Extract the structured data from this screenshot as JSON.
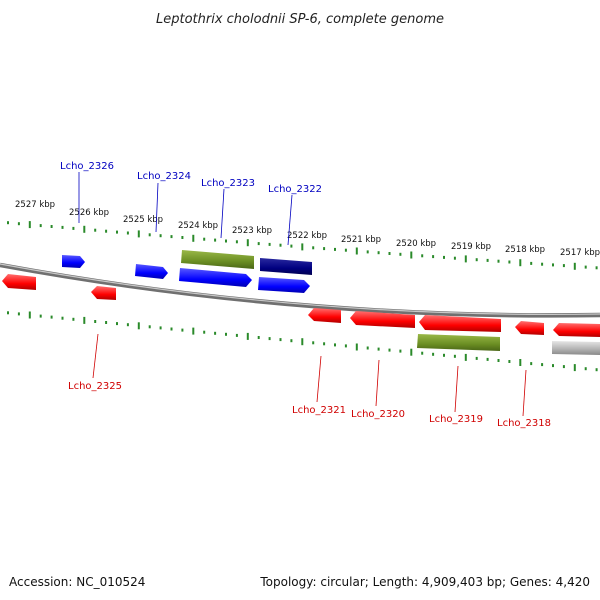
{
  "title": "Leptothrix cholodnii SP-6, complete genome",
  "footer": {
    "accession": "Accession: NC_010524",
    "topology": "Topology: circular; Length: 4,909,403 bp; Genes: 4,420"
  },
  "colors": {
    "forward_gene": "#0000ff",
    "forward_gene_selected": "#000080",
    "reverse_gene": "#ff0000",
    "rna_feature": "#6b8e23",
    "other_feature": "#b0b0b0",
    "ticks": "#2a8a2a",
    "backbone": "#808080",
    "forward_label": "#0000c0",
    "reverse_label": "#d00000"
  },
  "kbp_labels": [
    "2527 kbp",
    "2526 kbp",
    "2525 kbp",
    "2524 kbp",
    "2523 kbp",
    "2522 kbp",
    "2521 kbp",
    "2520 kbp",
    "2519 kbp",
    "2518 kbp",
    "2517 kbp"
  ],
  "gene_labels": {
    "forward": [
      "Lcho_2326",
      "Lcho_2324",
      "Lcho_2323",
      "Lcho_2322"
    ],
    "reverse": [
      "Lcho_2325",
      "Lcho_2321",
      "Lcho_2320",
      "Lcho_2319",
      "Lcho_2318"
    ]
  }
}
